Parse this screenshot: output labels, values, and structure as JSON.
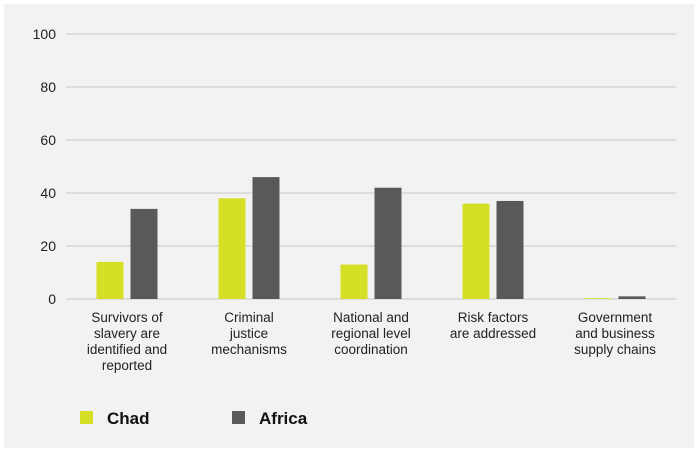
{
  "chart_data": {
    "type": "bar",
    "categories": [
      [
        "Survivors of",
        "slavery are",
        "identified and",
        "reported"
      ],
      [
        "Criminal",
        "justice",
        "mechanisms"
      ],
      [
        "National and",
        "regional level",
        "coordination"
      ],
      [
        "Risk factors",
        "are addressed"
      ],
      [
        "Government",
        "and business",
        "supply chains"
      ]
    ],
    "series": [
      {
        "name": "Chad",
        "color": "#d4df26",
        "values": [
          14,
          38,
          13,
          36,
          0.3
        ]
      },
      {
        "name": "Africa",
        "color": "#58595b",
        "values": [
          34,
          46,
          42,
          37,
          1
        ]
      }
    ],
    "ylim": [
      0,
      100
    ],
    "yticks": [
      0,
      20,
      40,
      60,
      80,
      100
    ],
    "grid": true,
    "legend_position": "bottom-left"
  }
}
